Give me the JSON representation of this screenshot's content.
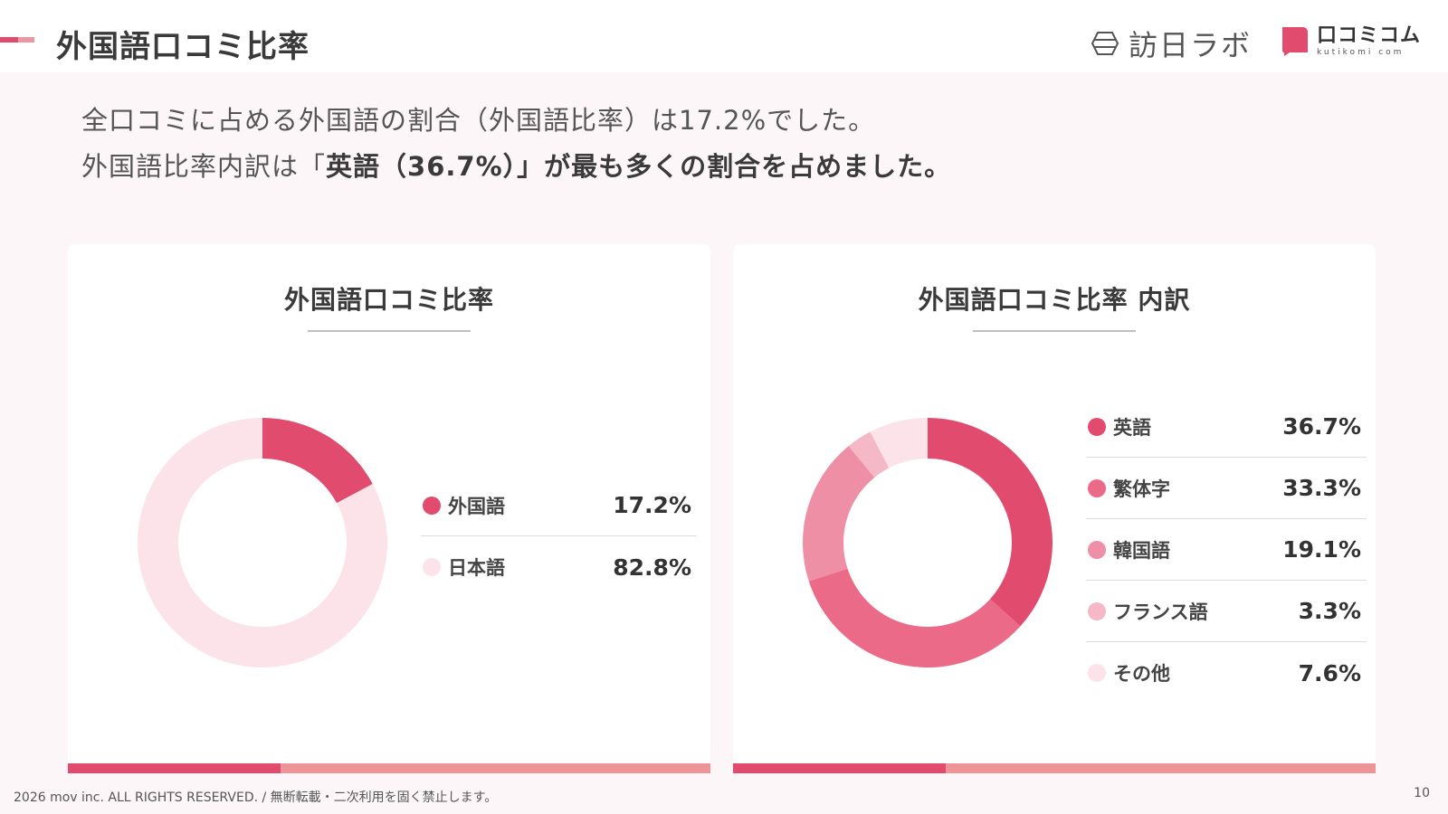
{
  "header": {
    "title": "外国語口コミ比率",
    "logo1_text": "訪日ラボ",
    "logo2_text": "口コミコム",
    "logo2_sub": "kutikomi com"
  },
  "summary": {
    "line1": "全口コミに占める外国語の割合（外国語比率）は17.2%でした。",
    "line2_pre": "外国語比率内訳は「",
    "line2_bold": "英語（36.7%）」が最も多くの割合を占めました。"
  },
  "colors": {
    "accent": "#e14b6e",
    "accent_light": "#ec9498",
    "background": "#fdf6f8"
  },
  "chart_data": [
    {
      "type": "pie",
      "title": "外国語口コミ比率",
      "categories": [
        "外国語",
        "日本語"
      ],
      "values": [
        17.2,
        82.8
      ],
      "value_labels": [
        "17.2%",
        "82.8%"
      ],
      "colors": [
        "#e14b6e",
        "#fce3e9"
      ],
      "legend": "right"
    },
    {
      "type": "pie",
      "title": "外国語口コミ比率 内訳",
      "categories": [
        "英語",
        "繁体字",
        "韓国語",
        "フランス語",
        "その他"
      ],
      "values": [
        36.7,
        33.3,
        19.1,
        3.3,
        7.6
      ],
      "value_labels": [
        "36.7%",
        "33.3%",
        "19.1%",
        "3.3%",
        "7.6%"
      ],
      "colors": [
        "#e14b6e",
        "#eb6a88",
        "#ef8fa5",
        "#f5b8c6",
        "#fce3e9"
      ],
      "legend": "right"
    }
  ],
  "footer": {
    "copyright": "2026 mov inc. ALL RIGHTS RESERVED. / 無断転載・二次利用を固く禁止します。",
    "page_number": "10"
  }
}
